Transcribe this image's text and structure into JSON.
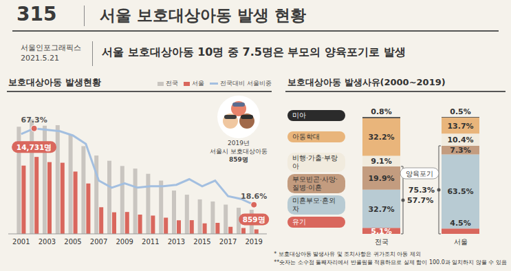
{
  "header": {
    "number": "315",
    "title": "서울 보호대상아동 발생 현황",
    "source": "서울인포그래픽스",
    "date": "2021.5.21",
    "subtitle": "서울 보호대상아동 10명 중 7.5명은 부모의 양육포기로 발생"
  },
  "chart_data": [
    {
      "type": "bar",
      "title": "보호대상아동 발생현황",
      "x": [
        2001,
        2002,
        2003,
        2004,
        2005,
        2006,
        2007,
        2008,
        2009,
        2010,
        2011,
        2012,
        2013,
        2014,
        2015,
        2016,
        2017,
        2018,
        2019
      ],
      "xlim": [
        2000,
        2020
      ],
      "xticks": [
        2001,
        2003,
        2005,
        2007,
        2009,
        2011,
        2013,
        2015,
        2017,
        2019
      ],
      "ylim": [
        0,
        27000
      ],
      "y2lim": [
        0,
        90
      ],
      "tick_labels": "x",
      "legend": "top right",
      "series": [
        {
          "name": "전국",
          "type": "bar",
          "color": "#c9c5c0",
          "values": [
            20500,
            21900,
            20700,
            20800,
            19000,
            16800,
            15000,
            14000,
            13000,
            12500,
            11500,
            10200,
            8300,
            7500,
            6600,
            6200,
            5600,
            5000,
            4618
          ]
        },
        {
          "name": "서울",
          "type": "bar",
          "color": "#d9675d",
          "values": [
            13060,
            14731,
            13740,
            13620,
            11930,
            9640,
            5100,
            4130,
            4190,
            3690,
            3500,
            3100,
            2600,
            2620,
            2010,
            2110,
            1350,
            1120,
            859
          ]
        },
        {
          "name": "전국대비 서울비중",
          "type": "line",
          "axis": "y2",
          "color": "#a3bfe0",
          "marker": "none",
          "values": [
            63.7,
            67.3,
            66.4,
            65.5,
            62.8,
            57.4,
            34.0,
            29.5,
            32.2,
            29.5,
            30.4,
            30.4,
            31.3,
            34.9,
            30.4,
            34.0,
            24.1,
            22.3,
            18.6
          ]
        }
      ],
      "annotations": [
        {
          "text": "67.3%",
          "x": 2002,
          "y": 67.3,
          "axis": "y2"
        },
        {
          "text": "14,731명",
          "x": 2002,
          "y": 14731
        },
        {
          "text": "18.6%",
          "x": 2019,
          "y": 18.6,
          "axis": "y2"
        },
        {
          "text": "859명",
          "x": 2019,
          "y": 859
        }
      ],
      "callout": {
        "lines": [
          "2019년",
          "서울시 보호대상아동",
          "859명"
        ]
      }
    },
    {
      "type": "bar",
      "stacked": true,
      "title": "보호대상아동 발생사유(2000~2019)",
      "categories": [
        "전국",
        "서울"
      ],
      "ylim": [
        0,
        100
      ],
      "tick_labels": "x",
      "data_labels": true,
      "legend": "left",
      "series": [
        {
          "name": "미아",
          "color": "#2b2b2b",
          "values": [
            0.8,
            0.5
          ],
          "value_labels": [
            "0.8%",
            "0.5%"
          ]
        },
        {
          "name": "아동학대",
          "color": "#e9b57b",
          "values": [
            32.2,
            13.7
          ],
          "value_labels": [
            "32.2%",
            "13.7%"
          ]
        },
        {
          "name": "비행·가출·부랑아",
          "color": "#f1ebde",
          "values": [
            9.1,
            10.4
          ],
          "value_labels": [
            "9.1%",
            "10.4%"
          ]
        },
        {
          "name": "부모빈곤·사망·질병·이혼",
          "color": "#c39c7f",
          "values": [
            19.9,
            7.3
          ],
          "value_labels": [
            "19.9%",
            "7.3%"
          ]
        },
        {
          "name": "미혼부모·혼외자",
          "color": "#b8cbd3",
          "values": [
            32.7,
            63.5
          ],
          "value_labels": [
            "32.7%",
            "63.5%"
          ]
        },
        {
          "name": "유기",
          "color": "#d9675d",
          "values": [
            5.1,
            4.5
          ],
          "value_labels": [
            "5.1%",
            "4.5%"
          ]
        }
      ],
      "groups": [
        {
          "name": "양육포기",
          "values": [
            57.7,
            75.3
          ],
          "value_labels": [
            "57.7%",
            "75.3%"
          ]
        }
      ]
    }
  ],
  "footnotes": [
    "* 보호대상아동 발생사유 및 조치사항은 귀가조치 아동 제외",
    "**숫자는 소수점 둘째자리에서 반올림을 적용하므로 실제 합이 100.0과 일치하지 않을 수 있음"
  ]
}
